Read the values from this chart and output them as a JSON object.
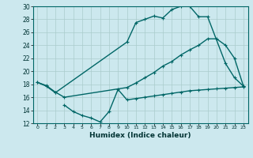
{
  "xlabel": "Humidex (Indice chaleur)",
  "bg_color": "#cce8ee",
  "grid_color": "#aacccc",
  "line_color": "#006666",
  "xlim": [
    -0.5,
    23.5
  ],
  "ylim": [
    12,
    30
  ],
  "xticks": [
    0,
    1,
    2,
    3,
    4,
    5,
    6,
    7,
    8,
    9,
    10,
    11,
    12,
    13,
    14,
    15,
    16,
    17,
    18,
    19,
    20,
    21,
    22,
    23
  ],
  "yticks": [
    12,
    14,
    16,
    18,
    20,
    22,
    24,
    26,
    28,
    30
  ],
  "line1_x": [
    0,
    1,
    2,
    10,
    11,
    12,
    13,
    14,
    15,
    16,
    17,
    18,
    19,
    21,
    22,
    23
  ],
  "line1_y": [
    18.3,
    17.7,
    16.7,
    24.5,
    27.5,
    28.0,
    28.5,
    28.2,
    29.5,
    30.0,
    30.0,
    28.4,
    28.4,
    21.2,
    19.0,
    17.7
  ],
  "line2_x": [
    0,
    1,
    2,
    3,
    10,
    11,
    12,
    13,
    14,
    15,
    16,
    17,
    18,
    19,
    20,
    21,
    22,
    23
  ],
  "line2_y": [
    18.3,
    17.8,
    16.8,
    16.0,
    17.5,
    18.2,
    19.0,
    19.8,
    20.8,
    21.5,
    22.5,
    23.3,
    24.0,
    25.0,
    25.0,
    24.0,
    22.0,
    17.7
  ],
  "line3_x": [
    3,
    4,
    5,
    6,
    7,
    8,
    9,
    10,
    11,
    12,
    13,
    14,
    15,
    16,
    17,
    18,
    19,
    20,
    21,
    22,
    23
  ],
  "line3_y": [
    14.8,
    13.8,
    13.2,
    12.8,
    12.2,
    13.8,
    17.2,
    15.6,
    15.8,
    16.0,
    16.2,
    16.4,
    16.6,
    16.8,
    17.0,
    17.1,
    17.2,
    17.3,
    17.4,
    17.5,
    17.6
  ]
}
